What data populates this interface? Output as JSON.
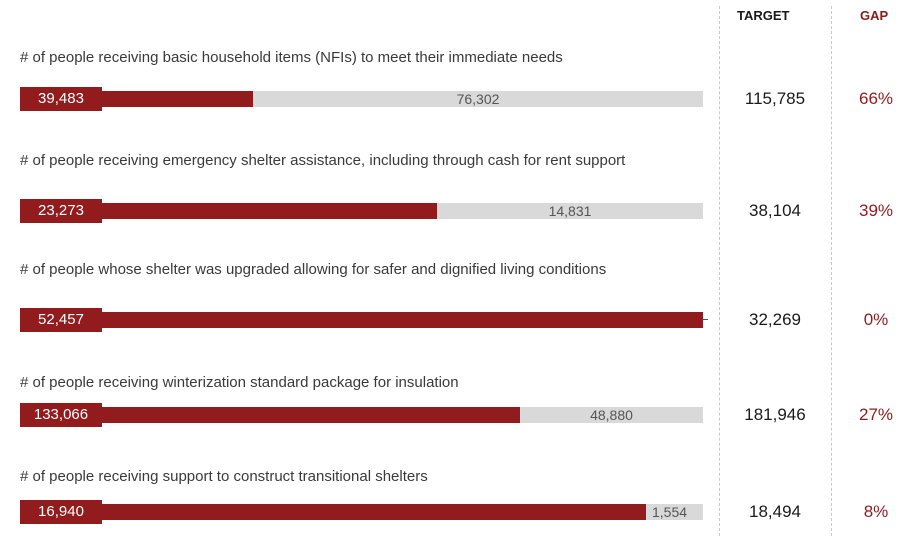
{
  "headers": {
    "target": "TARGET",
    "gap": "GAP"
  },
  "colors": {
    "achieved": "#921b1d",
    "remaining": "#d9d9d9",
    "gap_text": "#921b1d"
  },
  "chart_data": {
    "type": "bar",
    "orientation": "horizontal",
    "stacked": true,
    "categories": [
      "# of people receiving basic household items (NFIs) to meet their immediate needs",
      "# of people receiving emergency shelter assistance, including through cash for rent support",
      "# of people whose shelter was upgraded allowing for safer and dignified living conditions",
      "# of people receiving winterization standard package for insulation",
      "# of people receiving support to construct transitional shelters"
    ],
    "series": [
      {
        "values": [
          39483,
          23273,
          52457,
          133066,
          16940
        ]
      },
      {
        "values": [
          76302,
          14831,
          null,
          48880,
          1554
        ]
      }
    ],
    "achieved_labels": [
      "39,483",
      "23,273",
      "52,457",
      "133,066",
      "16,940"
    ],
    "remaining_labels": [
      "76,302",
      "14,831",
      "",
      "48,880",
      "1,554"
    ],
    "targets": [
      115785,
      38104,
      32269,
      181946,
      18494
    ],
    "target_labels": [
      "115,785",
      "38,104",
      "32,269",
      "181,946",
      "18,494"
    ],
    "gaps": [
      "66%",
      "39%",
      "0%",
      "27%",
      "8%"
    ]
  }
}
